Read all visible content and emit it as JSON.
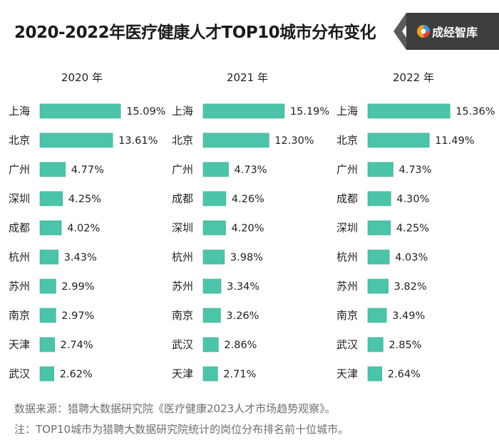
{
  "title": "2020-2022年医疗健康人才TOP10城市分布变化",
  "logo": {
    "text": "成经智库",
    "icon": "brand-swirl-icon"
  },
  "colors": {
    "bar": "#4cc4aa",
    "barEdge": "#3aa88f",
    "text": "#1f1f1f"
  },
  "chart_data": [
    {
      "type": "bar",
      "orientation": "horizontal",
      "title": "2020 年",
      "categories": [
        "上海",
        "北京",
        "广州",
        "深圳",
        "成都",
        "杭州",
        "苏州",
        "南京",
        "天津",
        "武汉"
      ],
      "values": [
        15.09,
        13.61,
        4.77,
        4.25,
        4.02,
        3.43,
        2.99,
        2.97,
        2.74,
        2.62
      ],
      "labels": [
        "15.09%",
        "13.61%",
        "4.77%",
        "4.25%",
        "4.02%",
        "3.43%",
        "2.99%",
        "2.97%",
        "2.74%",
        "2.62%"
      ]
    },
    {
      "type": "bar",
      "orientation": "horizontal",
      "title": "2021 年",
      "categories": [
        "上海",
        "北京",
        "广州",
        "成都",
        "深圳",
        "杭州",
        "苏州",
        "南京",
        "武汉",
        "天津"
      ],
      "values": [
        15.19,
        12.3,
        4.73,
        4.26,
        4.2,
        3.98,
        3.34,
        3.26,
        2.86,
        2.71
      ],
      "labels": [
        "15.19%",
        "12.30%",
        "4.73%",
        "4.26%",
        "4.20%",
        "3.98%",
        "3.34%",
        "3.26%",
        "2.86%",
        "2.71%"
      ]
    },
    {
      "type": "bar",
      "orientation": "horizontal",
      "title": "2022 年",
      "categories": [
        "上海",
        "北京",
        "广州",
        "成都",
        "深圳",
        "杭州",
        "苏州",
        "南京",
        "武汉",
        "天津"
      ],
      "values": [
        15.36,
        11.49,
        4.73,
        4.3,
        4.25,
        4.03,
        3.82,
        3.49,
        2.85,
        2.64
      ],
      "labels": [
        "15.36%",
        "11.49%",
        "4.73%",
        "4.30%",
        "4.25%",
        "4.03%",
        "3.82%",
        "3.49%",
        "2.85%",
        "2.64%"
      ]
    }
  ],
  "footer": {
    "source": "数据来源：猎聘大数据研究院《医疗健康2023人才市场趋势观察》。",
    "note": "注：TOP10城市为猎聘大数据研究院统计的岗位分布排名前十位城市。"
  }
}
